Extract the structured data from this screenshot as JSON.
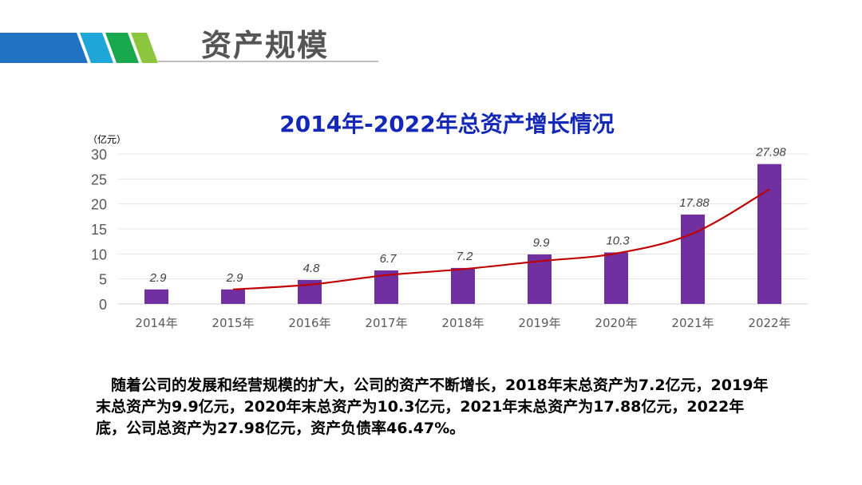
{
  "page": {
    "title": "资产规模"
  },
  "header": {
    "stripe_colors": [
      "#1f73c2",
      "#1fa5d8",
      "#1aa84f",
      "#8cc63f"
    ],
    "rule_color": "#bfbfbf"
  },
  "chart_data": {
    "type": "bar",
    "title": "2014年-2022年总资产增长情况",
    "unit_label": "（亿元）",
    "categories": [
      "2014年",
      "2015年",
      "2016年",
      "2017年",
      "2018年",
      "2019年",
      "2020年",
      "2021年",
      "2022年"
    ],
    "series": [
      {
        "type": "bar",
        "color": "#7030a0",
        "values": [
          2.9,
          2.9,
          4.8,
          6.7,
          7.2,
          9.9,
          10.3,
          17.88,
          27.98
        ],
        "data_labels": [
          "2.9",
          "2.9",
          "4.8",
          "6.7",
          "7.2",
          "9.9",
          "10.3",
          "17.88",
          "27.98"
        ]
      },
      {
        "type": "line",
        "color": "#c00000",
        "trendline": "moving-average",
        "x": [
          "2015年",
          "2016年",
          "2017年",
          "2018年",
          "2019年",
          "2020年",
          "2021年",
          "2022年"
        ],
        "values": [
          2.9,
          3.85,
          5.75,
          6.95,
          8.55,
          10.1,
          14.09,
          22.93
        ]
      }
    ],
    "yticks": [
      0,
      5,
      10,
      15,
      20,
      25,
      30
    ],
    "ylim": [
      0,
      30
    ],
    "grid": true,
    "legend": "none"
  },
  "summary": {
    "text": "随着公司的发展和经营规模的扩大，公司的资产不断增长，2018年末总资产为7.2亿元，2019年末总资产为9.9亿元，2020年末总资产为10.3亿元，2021年末总资产为17.88亿元，2022年底，公司总资产为27.98亿元，资产负债率46.47%。"
  }
}
